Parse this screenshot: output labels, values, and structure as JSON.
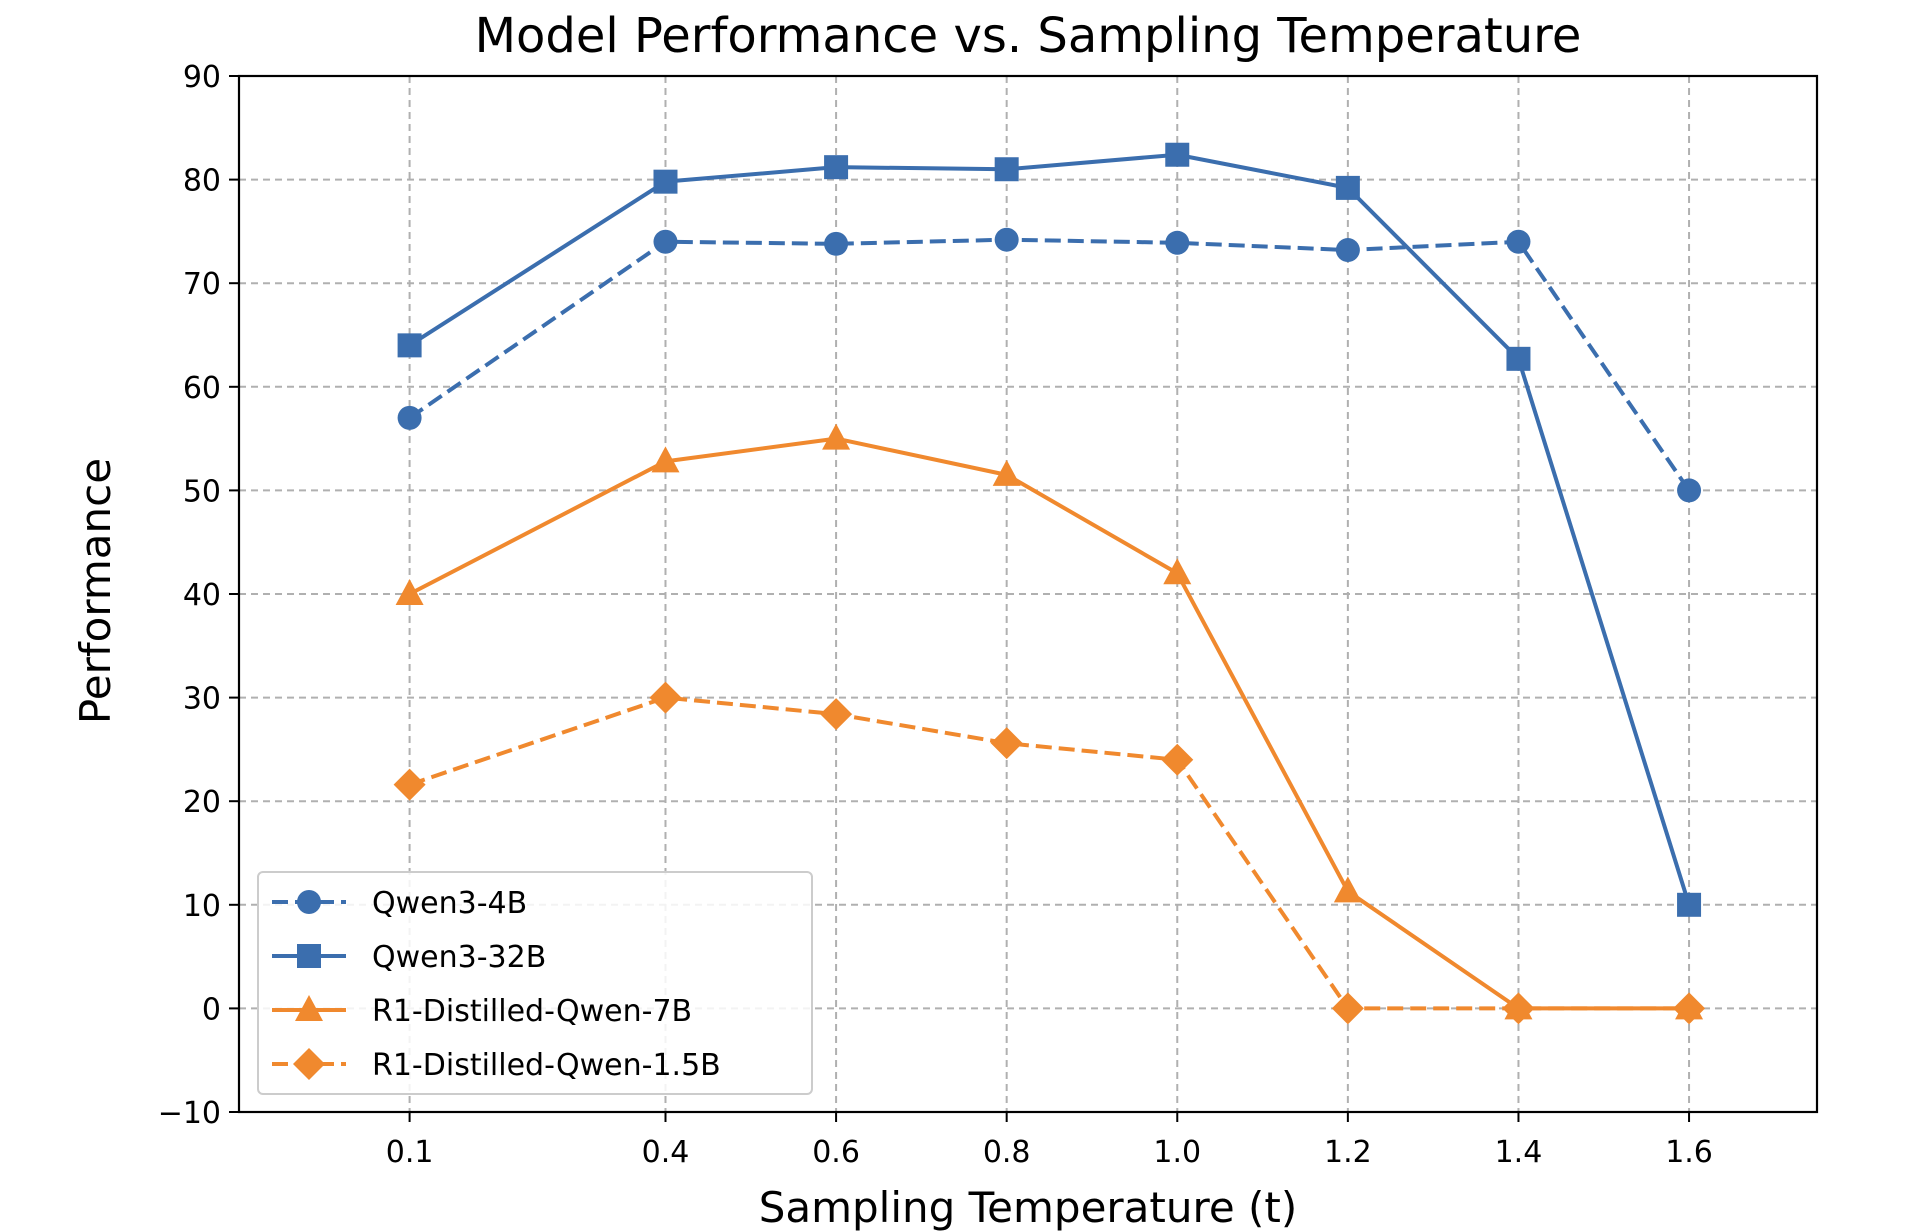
{
  "chart_data": {
    "type": "line",
    "title": "Model Performance vs. Sampling Temperature",
    "xlabel": "Sampling Temperature (t)",
    "ylabel": "Performance",
    "x": [
      0.1,
      0.4,
      0.6,
      0.8,
      1.0,
      1.2,
      1.4,
      1.6
    ],
    "x_tick_labels": [
      "0.1",
      "0.4",
      "0.6",
      "0.8",
      "1.0",
      "1.2",
      "1.4",
      "1.6"
    ],
    "ylim": [
      -10,
      90
    ],
    "xlim": [
      -0.1,
      1.75
    ],
    "y_ticks": [
      -10,
      0,
      10,
      20,
      30,
      40,
      50,
      60,
      70,
      80,
      90
    ],
    "y_tick_labels": [
      "−10",
      "0",
      "10",
      "20",
      "30",
      "40",
      "50",
      "60",
      "70",
      "80",
      "90"
    ],
    "grid": true,
    "legend_position": "lower-left",
    "series": [
      {
        "name": "Qwen3-4B",
        "values": [
          57.0,
          74.0,
          73.8,
          74.2,
          73.9,
          73.2,
          74.0,
          50.0
        ],
        "color": "#3b6eae",
        "line": "dashed",
        "marker": "circle"
      },
      {
        "name": "Qwen3-32B",
        "values": [
          64.0,
          79.8,
          81.2,
          81.0,
          82.4,
          79.2,
          62.7,
          10.0
        ],
        "color": "#3b6eae",
        "line": "solid",
        "marker": "square"
      },
      {
        "name": "R1-Distilled-Qwen-7B",
        "values": [
          40.0,
          52.8,
          55.0,
          51.5,
          42.0,
          11.3,
          0.0,
          0.0
        ],
        "color": "#f0892e",
        "line": "solid",
        "marker": "triangle"
      },
      {
        "name": "R1-Distilled-Qwen-1.5B",
        "values": [
          21.6,
          30.0,
          28.4,
          25.6,
          24.0,
          0.0,
          0.0,
          0.0
        ],
        "color": "#f0892e",
        "line": "dashed",
        "marker": "diamond"
      }
    ]
  }
}
